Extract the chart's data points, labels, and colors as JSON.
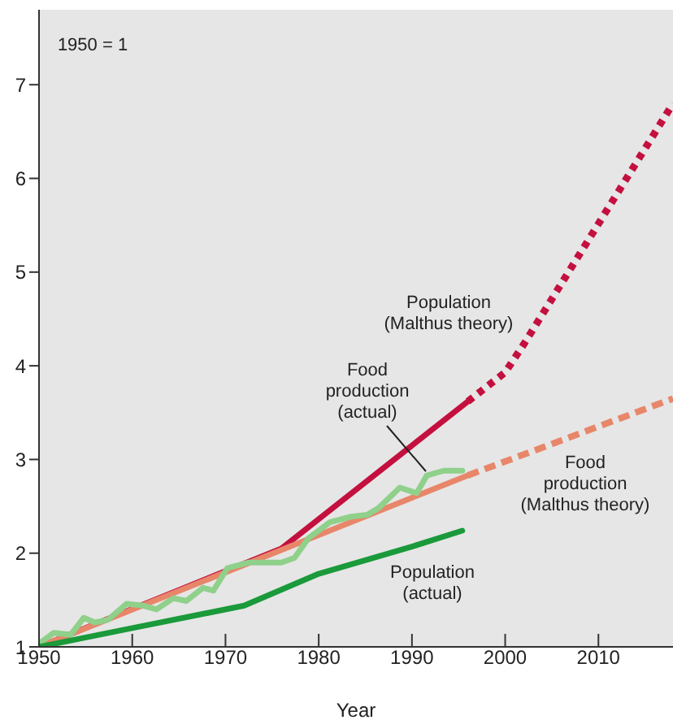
{
  "chart_data": {
    "type": "line",
    "xlabel": "Year",
    "xlim": [
      1950,
      2018
    ],
    "xticks": [
      1950,
      1960,
      1970,
      1980,
      1990,
      2000,
      2010
    ],
    "ylim": [
      1,
      7.8
    ],
    "yticks": [
      1,
      2,
      3,
      4,
      5,
      6,
      7
    ],
    "marker": "none",
    "series": [
      {
        "color": "#c4103f",
        "line_style": "solid",
        "x": [
          1950,
          1976,
          1996
        ],
        "values": [
          1,
          2.05,
          3.62
        ]
      },
      {
        "color": "#c4103f",
        "line_style": "dotted",
        "x": [
          1996,
          2000,
          2002,
          2018
        ],
        "values": [
          3.62,
          3.93,
          4.23,
          6.8
        ]
      },
      {
        "color": "#e8866a",
        "line_style": "solid",
        "x": [
          1950,
          1996
        ],
        "values": [
          1,
          2.83
        ]
      },
      {
        "color": "#e8866a",
        "line_style": "dashed",
        "x": [
          1996,
          2018
        ],
        "values": [
          2.83,
          3.65
        ]
      },
      {
        "color": "#8fd08a",
        "line_style": "solid",
        "x": [
          1950.2,
          1951.6,
          1953.4,
          1954.8,
          1956,
          1957.4,
          1959.4,
          1961.2,
          1962.6,
          1964.4,
          1965.8,
          1967.6,
          1968.7,
          1970.2,
          1972.5,
          1976,
          1977.4,
          1978.9,
          1981.2,
          1983.5,
          1985.2,
          1986.4,
          1988.7,
          1990.5,
          1991.6,
          1993.4,
          1995.4
        ],
        "values": [
          1.05,
          1.15,
          1.13,
          1.31,
          1.26,
          1.29,
          1.46,
          1.44,
          1.4,
          1.52,
          1.49,
          1.63,
          1.6,
          1.84,
          1.9,
          1.9,
          1.95,
          2.16,
          2.33,
          2.39,
          2.41,
          2.48,
          2.7,
          2.64,
          2.83,
          2.88,
          2.88
        ]
      },
      {
        "color": "#1a9a3a",
        "line_style": "solid",
        "x": [
          1950,
          1960,
          1972,
          1980,
          1990,
          1995.4
        ],
        "values": [
          1,
          1.2,
          1.44,
          1.78,
          2.07,
          2.24
        ]
      }
    ],
    "annotations": [
      "1950 = 1",
      "Population\n(Malthus theory)",
      "Food\nproduction\n(actual)",
      "Food\nproduction\n(Malthus theory)",
      "Population\n(actual)"
    ]
  }
}
